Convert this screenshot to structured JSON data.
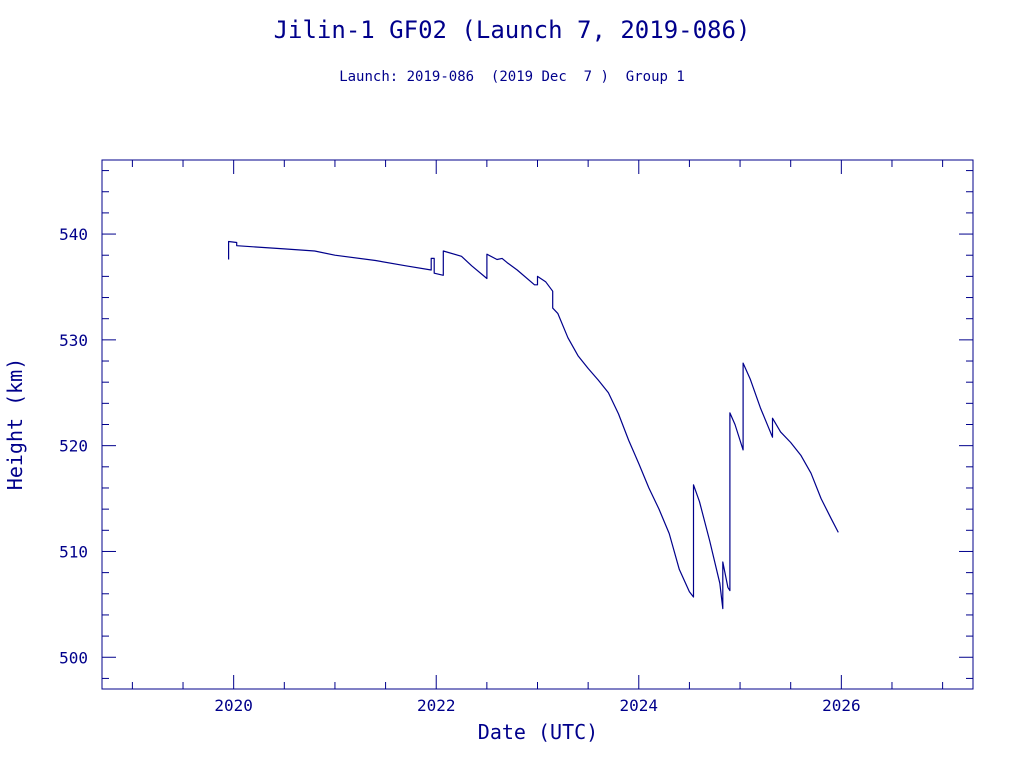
{
  "title": "Jilin-1 GF02 (Launch 7, 2019-086)",
  "subtitle": "Launch: 2019-086  (2019 Dec  7 )  Group 1",
  "colors": {
    "ink": "#00008b"
  },
  "chart_data": {
    "type": "line",
    "xlabel": "Date (UTC)",
    "ylabel": "Height (km)",
    "xlim": [
      2018.7,
      2027.3
    ],
    "ylim": [
      497,
      547
    ],
    "x_ticks": [
      2020,
      2022,
      2024,
      2026
    ],
    "y_ticks": [
      500,
      510,
      520,
      530,
      540
    ],
    "x_minor_step": 0.5,
    "y_minor_step": 2,
    "grid": false,
    "legend": "none",
    "series": [
      {
        "points": [
          [
            2019.95,
            537.6
          ],
          [
            2019.95,
            539.3
          ],
          [
            2020.03,
            539.2
          ],
          [
            2020.03,
            538.9
          ],
          [
            2020.5,
            538.6
          ],
          [
            2020.8,
            538.4
          ],
          [
            2021.0,
            538.0
          ],
          [
            2021.4,
            537.5
          ],
          [
            2021.7,
            537.0
          ],
          [
            2021.95,
            536.6
          ],
          [
            2021.95,
            537.7
          ],
          [
            2021.98,
            537.7
          ],
          [
            2021.98,
            536.3
          ],
          [
            2022.07,
            536.1
          ],
          [
            2022.07,
            538.4
          ],
          [
            2022.25,
            537.9
          ],
          [
            2022.35,
            537.0
          ],
          [
            2022.5,
            535.8
          ],
          [
            2022.5,
            538.1
          ],
          [
            2022.6,
            537.6
          ],
          [
            2022.65,
            537.7
          ],
          [
            2022.7,
            537.3
          ],
          [
            2022.8,
            536.6
          ],
          [
            2022.97,
            535.2
          ],
          [
            2023.0,
            535.2
          ],
          [
            2023.0,
            536.0
          ],
          [
            2023.08,
            535.5
          ],
          [
            2023.15,
            534.6
          ],
          [
            2023.15,
            533.0
          ],
          [
            2023.2,
            532.5
          ],
          [
            2023.3,
            530.2
          ],
          [
            2023.4,
            528.5
          ],
          [
            2023.5,
            527.3
          ],
          [
            2023.6,
            526.2
          ],
          [
            2023.7,
            525.0
          ],
          [
            2023.8,
            523.0
          ],
          [
            2023.9,
            520.5
          ],
          [
            2024.0,
            518.3
          ],
          [
            2024.1,
            516.0
          ],
          [
            2024.2,
            514.0
          ],
          [
            2024.3,
            511.7
          ],
          [
            2024.4,
            508.3
          ],
          [
            2024.5,
            506.2
          ],
          [
            2024.54,
            505.7
          ],
          [
            2024.54,
            516.3
          ],
          [
            2024.6,
            514.7
          ],
          [
            2024.7,
            511.0
          ],
          [
            2024.8,
            507.0
          ],
          [
            2024.83,
            504.6
          ],
          [
            2024.83,
            509.0
          ],
          [
            2024.88,
            506.6
          ],
          [
            2024.9,
            506.3
          ],
          [
            2024.9,
            523.1
          ],
          [
            2024.95,
            522.0
          ],
          [
            2025.03,
            519.6
          ],
          [
            2025.03,
            527.8
          ],
          [
            2025.1,
            526.3
          ],
          [
            2025.2,
            523.6
          ],
          [
            2025.32,
            520.8
          ],
          [
            2025.32,
            522.6
          ],
          [
            2025.4,
            521.3
          ],
          [
            2025.5,
            520.3
          ],
          [
            2025.6,
            519.1
          ],
          [
            2025.7,
            517.4
          ],
          [
            2025.8,
            515.0
          ],
          [
            2025.9,
            513.1
          ],
          [
            2025.97,
            511.8
          ]
        ]
      }
    ]
  }
}
